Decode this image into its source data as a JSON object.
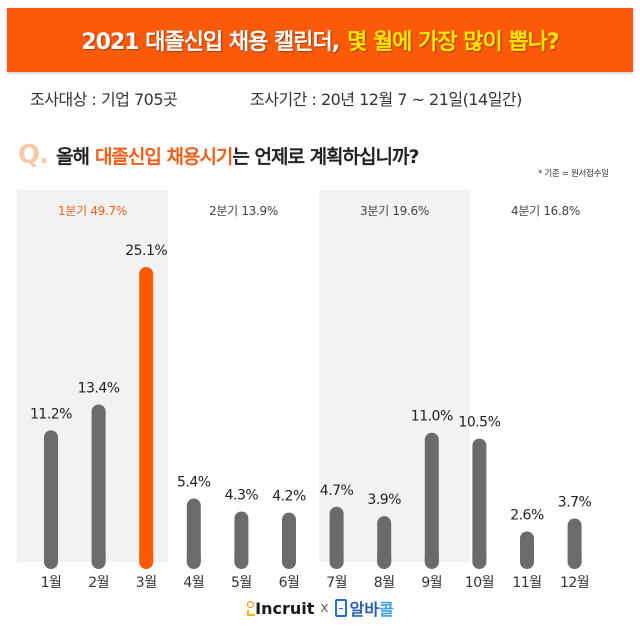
{
  "header": {
    "title_white": "2021 대졸신입 채용 캘린더,",
    "title_yellow": "몇 월에 가장 많이 뽑나?"
  },
  "survey": {
    "target": "조사대상 : 기업 705곳",
    "period": "조사기간 : 20년 12월 7 ~ 21일(14일간)"
  },
  "question": {
    "marker": "Q.",
    "prefix": "올해",
    "highlight": "대졸신입 채용시기",
    "suffix": "는 언제로 계획하십니까?",
    "note": "* 기준 = 원서접수일"
  },
  "colors": {
    "banner": "#fa5a0a",
    "highlight_bar": "#ff5a00",
    "bar": "#6f6a6a",
    "band": "#f2f2f2",
    "q1_label": "#f0601a"
  },
  "chart_data": {
    "type": "bar",
    "title": "올해 대졸신입 채용시기는 언제로 계획하십니까?",
    "xlabel": "",
    "ylabel": "",
    "ylim": [
      0,
      25.1
    ],
    "grid": false,
    "categories": [
      "1월",
      "2월",
      "3월",
      "4월",
      "5월",
      "6월",
      "7월",
      "8월",
      "9월",
      "10월",
      "11월",
      "12월"
    ],
    "values": [
      11.2,
      13.4,
      25.1,
      5.4,
      4.3,
      4.2,
      4.7,
      3.9,
      11.0,
      10.5,
      2.6,
      3.7
    ],
    "value_labels": [
      "11.2%",
      "13.4%",
      "25.1%",
      "5.4%",
      "4.3%",
      "4.2%",
      "4.7%",
      "3.9%",
      "11.0%",
      "10.5%",
      "2.6%",
      "3.7%"
    ],
    "highlight_index": 2,
    "quarters": [
      {
        "label": "1분기",
        "value": "49.7%",
        "months": [
          0,
          1,
          2
        ],
        "shaded": true,
        "highlight": true
      },
      {
        "label": "2분기",
        "value": "13.9%",
        "months": [
          3,
          4,
          5
        ],
        "shaded": false,
        "highlight": false
      },
      {
        "label": "3분기",
        "value": "19.6%",
        "months": [
          6,
          7,
          8
        ],
        "shaded": true,
        "highlight": false
      },
      {
        "label": "4분기",
        "value": "16.8%",
        "months": [
          9,
          10,
          11
        ],
        "shaded": false,
        "highlight": false
      }
    ]
  },
  "footer": {
    "brand1": "Incruit",
    "separator": "x",
    "brand2_a": "알바",
    "brand2_b": "콜"
  }
}
